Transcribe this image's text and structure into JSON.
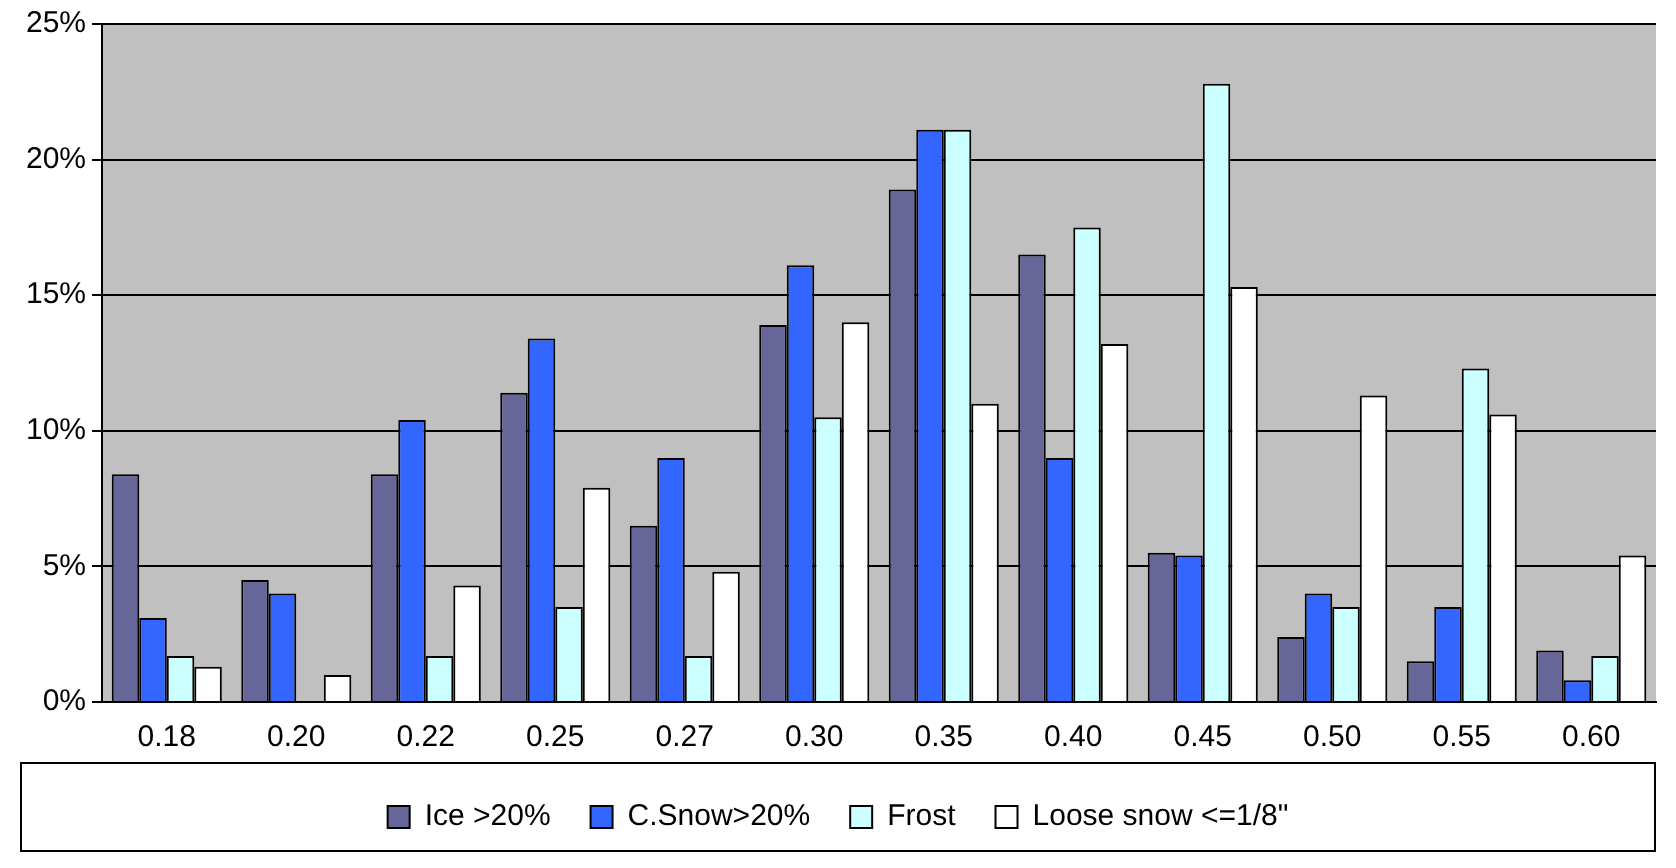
{
  "chart_data": {
    "type": "bar",
    "categories": [
      "0.18",
      "0.20",
      "0.22",
      "0.25",
      "0.27",
      "0.30",
      "0.35",
      "0.40",
      "0.45",
      "0.50",
      "0.55",
      "0.60"
    ],
    "series": [
      {
        "name": "Ice >20%",
        "color": "#666699",
        "values": [
          8.4,
          4.5,
          8.4,
          11.4,
          6.5,
          13.9,
          18.9,
          16.5,
          5.5,
          2.4,
          1.5,
          1.9
        ]
      },
      {
        "name": "C.Snow>20%",
        "color": "#3366ff",
        "values": [
          3.1,
          4.0,
          10.4,
          13.4,
          9.0,
          16.1,
          21.1,
          9.0,
          5.4,
          4.0,
          3.5,
          0.8
        ]
      },
      {
        "name": "Frost",
        "color": "#ccffff",
        "values": [
          1.7,
          0,
          1.7,
          3.5,
          1.7,
          10.5,
          21.1,
          17.5,
          22.8,
          3.5,
          12.3,
          1.7
        ]
      },
      {
        "name": "Loose snow <=1/8\"",
        "color": "#ffffff",
        "values": [
          1.3,
          1.0,
          4.3,
          7.9,
          4.8,
          14.0,
          11.0,
          13.2,
          15.3,
          11.3,
          10.6,
          5.4
        ]
      }
    ],
    "ylim": [
      0,
      25
    ],
    "yticks": [
      {
        "value": 0,
        "label": "0%"
      },
      {
        "value": 5,
        "label": "5%"
      },
      {
        "value": 10,
        "label": "10%"
      },
      {
        "value": 15,
        "label": "15%"
      },
      {
        "value": 20,
        "label": "20%"
      },
      {
        "value": 25,
        "label": "25%"
      }
    ],
    "grid": "y",
    "legend": "bottom"
  }
}
